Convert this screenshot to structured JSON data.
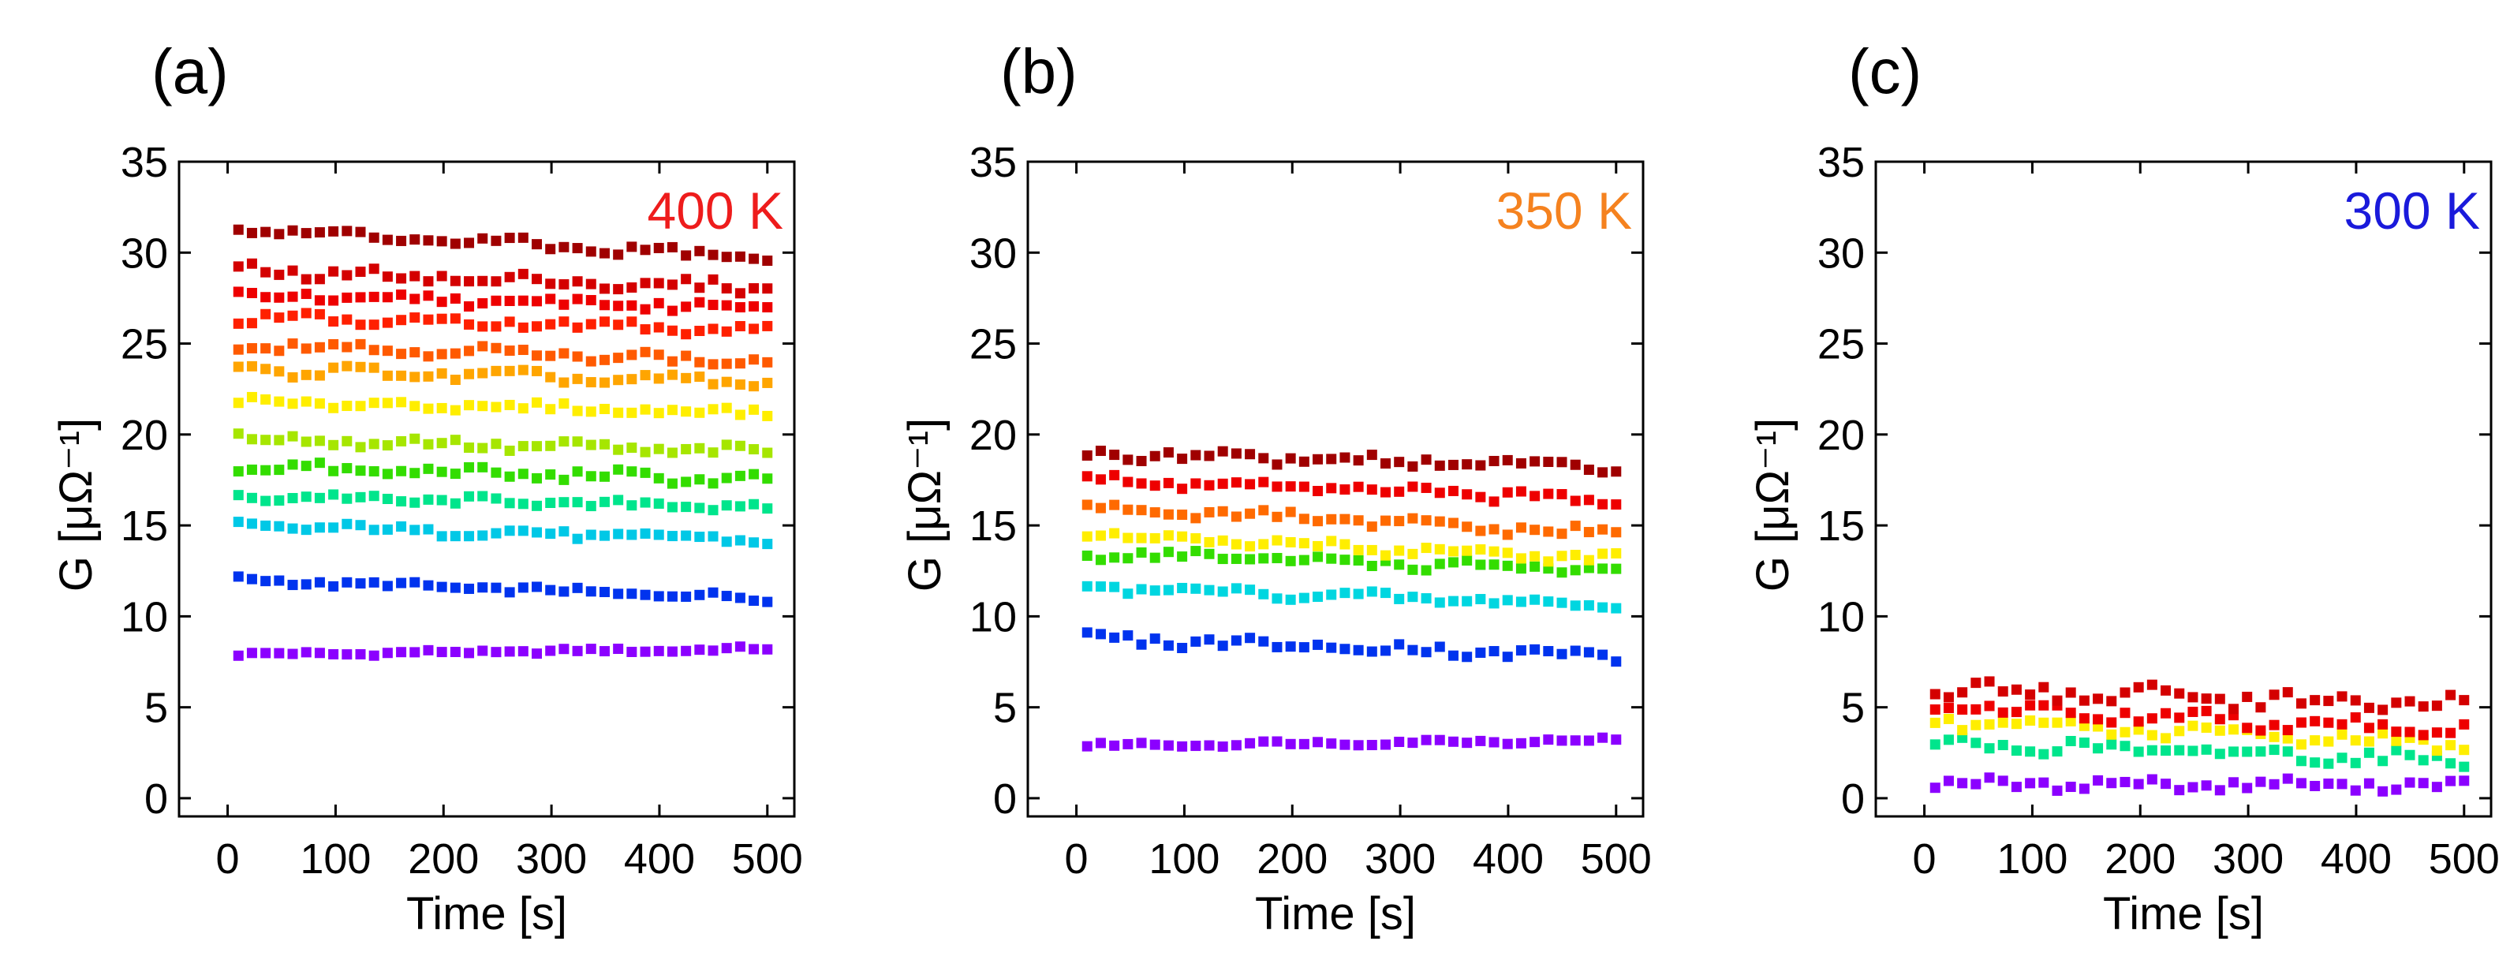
{
  "figure": {
    "panels": [
      {
        "letter": "(a)",
        "temperature_label": "400 K",
        "temperature_color": "#ee1c1c"
      },
      {
        "letter": "(b)",
        "temperature_label": "350 K",
        "temperature_color": "#f5821f"
      },
      {
        "letter": "(c)",
        "temperature_label": "300 K",
        "temperature_color": "#1a1adb"
      }
    ]
  },
  "chart_data": [
    {
      "type": "scatter",
      "panel": "(a)",
      "title": "400 K",
      "xlabel": "Time [s]",
      "ylabel": "G [μΩ⁻¹]",
      "xlim": [
        -45,
        525
      ],
      "ylim": [
        -1,
        35
      ],
      "xticks": [
        0,
        100,
        200,
        300,
        400,
        500
      ],
      "yticks": [
        0,
        5,
        10,
        15,
        20,
        25,
        30,
        35
      ],
      "x_start": 10,
      "x_end": 500,
      "points_per_series": 40,
      "series": [
        {
          "name": "s1",
          "color": "#8b00ff",
          "level_start": 7.9,
          "level_end": 8.2,
          "noise": 0.1
        },
        {
          "name": "s2",
          "color": "#0033ee",
          "level_start": 12.0,
          "level_end": 11.0,
          "noise": 0.15
        },
        {
          "name": "s3",
          "color": "#00c8e6",
          "level_start": 15.0,
          "level_end": 14.2,
          "noise": 0.2
        },
        {
          "name": "s4",
          "color": "#00e58c",
          "level_start": 16.6,
          "level_end": 16.0,
          "noise": 0.2
        },
        {
          "name": "s5",
          "color": "#33dd00",
          "level_start": 18.2,
          "level_end": 17.5,
          "noise": 0.25
        },
        {
          "name": "s6",
          "color": "#a6e600",
          "level_start": 19.8,
          "level_end": 19.0,
          "noise": 0.25
        },
        {
          "name": "s7",
          "color": "#ffee00",
          "level_start": 21.8,
          "level_end": 21.2,
          "noise": 0.2
        },
        {
          "name": "s8",
          "color": "#ffa500",
          "level_start": 23.6,
          "level_end": 22.8,
          "noise": 0.25
        },
        {
          "name": "s9",
          "color": "#ff5a00",
          "level_start": 25.0,
          "level_end": 24.0,
          "noise": 0.25
        },
        {
          "name": "s10",
          "color": "#ff2000",
          "level_start": 26.4,
          "level_end": 25.8,
          "noise": 0.25
        },
        {
          "name": "s11",
          "color": "#ee0000",
          "level_start": 27.6,
          "level_end": 27.0,
          "noise": 0.25
        },
        {
          "name": "s12",
          "color": "#d40000",
          "level_start": 29.0,
          "level_end": 28.0,
          "noise": 0.3
        },
        {
          "name": "s13",
          "color": "#a00000",
          "level_start": 31.3,
          "level_end": 29.7,
          "noise": 0.25
        }
      ]
    },
    {
      "type": "scatter",
      "panel": "(b)",
      "title": "350 K",
      "xlabel": "Time [s]",
      "ylabel": "G [μΩ⁻¹]",
      "xlim": [
        -45,
        525
      ],
      "ylim": [
        -1,
        35
      ],
      "xticks": [
        0,
        100,
        200,
        300,
        400,
        500
      ],
      "yticks": [
        0,
        5,
        10,
        15,
        20,
        25,
        30,
        35
      ],
      "x_start": 10,
      "x_end": 500,
      "points_per_series": 40,
      "series": [
        {
          "name": "s1",
          "color": "#8b00ff",
          "level_start": 2.9,
          "level_end": 3.2,
          "noise": 0.1
        },
        {
          "name": "s2",
          "color": "#0033ee",
          "level_start": 8.8,
          "level_end": 7.8,
          "noise": 0.25
        },
        {
          "name": "s3",
          "color": "#00d6e0",
          "level_start": 11.6,
          "level_end": 10.6,
          "noise": 0.2
        },
        {
          "name": "s4",
          "color": "#33dd00",
          "level_start": 13.5,
          "level_end": 12.5,
          "noise": 0.25
        },
        {
          "name": "s5",
          "color": "#ffee00",
          "level_start": 14.4,
          "level_end": 13.2,
          "noise": 0.25
        },
        {
          "name": "s6",
          "color": "#ff6a00",
          "level_start": 16.0,
          "level_end": 14.5,
          "noise": 0.25
        },
        {
          "name": "s7",
          "color": "#ee0000",
          "level_start": 17.5,
          "level_end": 16.4,
          "noise": 0.25
        },
        {
          "name": "s8",
          "color": "#a00000",
          "level_start": 19.0,
          "level_end": 18.2,
          "noise": 0.25
        }
      ]
    },
    {
      "type": "scatter",
      "panel": "(c)",
      "title": "300 K",
      "xlabel": "Time [s]",
      "ylabel": "G [μΩ⁻¹]",
      "xlim": [
        -45,
        525
      ],
      "ylim": [
        -1,
        35
      ],
      "xticks": [
        0,
        100,
        200,
        300,
        400,
        500
      ],
      "yticks": [
        0,
        5,
        10,
        15,
        20,
        25,
        30,
        35
      ],
      "x_start": 10,
      "x_end": 500,
      "points_per_series": 40,
      "series": [
        {
          "name": "s1",
          "color": "#8b00ff",
          "level_start": 0.8,
          "level_end": 0.7,
          "noise": 0.25
        },
        {
          "name": "s2",
          "color": "#00e58c",
          "level_start": 3.0,
          "level_end": 2.1,
          "noise": 0.3
        },
        {
          "name": "s3",
          "color": "#ffee00",
          "level_start": 4.2,
          "level_end": 3.0,
          "noise": 0.3
        },
        {
          "name": "s4",
          "color": "#ee0000",
          "level_start": 5.0,
          "level_end": 3.8,
          "noise": 0.35
        },
        {
          "name": "s5",
          "color": "#d40000",
          "level_start": 6.0,
          "level_end": 5.1,
          "noise": 0.4
        }
      ]
    }
  ]
}
